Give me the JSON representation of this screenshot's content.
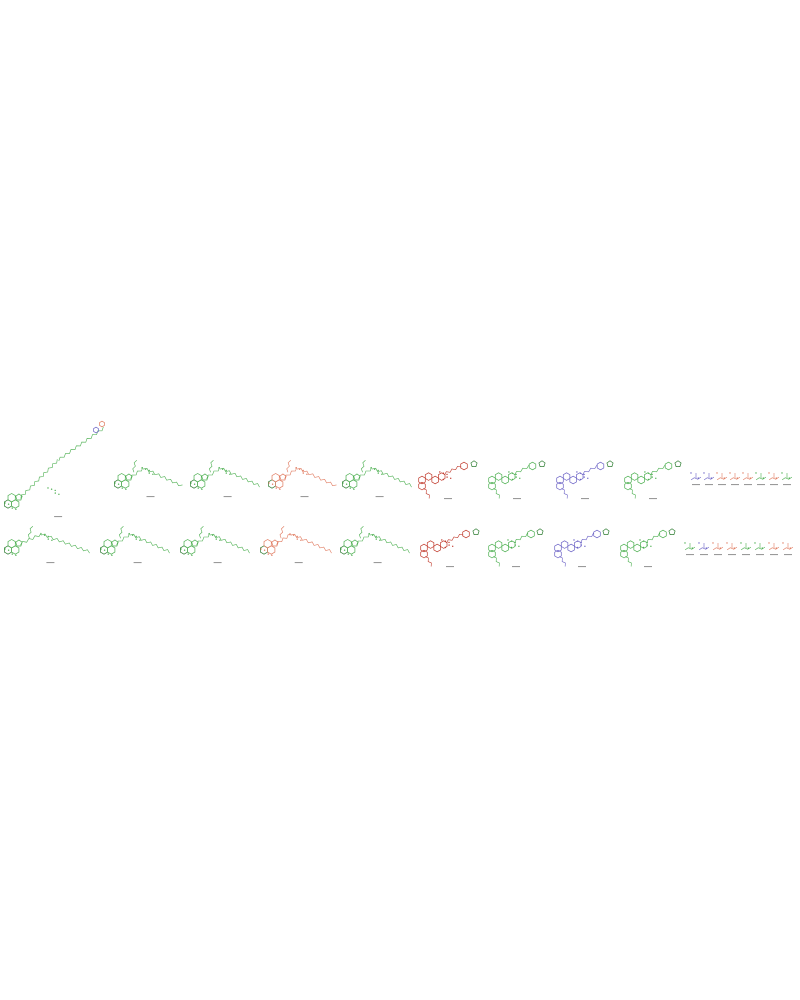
{
  "figure": {
    "type": "chemical-structure-panel",
    "rows": 2,
    "row_1": {
      "molecules": [
        {
          "color": "#4caf50",
          "label": "",
          "kind": "long-chain-tilted"
        },
        {
          "color": "#4caf50",
          "label": "",
          "kind": "chain"
        },
        {
          "color": "#4caf50",
          "label": "",
          "kind": "chain"
        },
        {
          "color": "#e07a5f",
          "label": "",
          "kind": "chain"
        },
        {
          "color": "#4caf50",
          "label": "",
          "kind": "chain-tail"
        },
        {
          "color": "#c0392b",
          "label": "",
          "kind": "fused-rings"
        },
        {
          "color": "#4caf50",
          "label": "",
          "kind": "fused-rings"
        },
        {
          "color": "#6c63c6",
          "label": "",
          "kind": "fused-rings"
        },
        {
          "color": "#4caf50",
          "label": "",
          "kind": "fused-rings"
        }
      ],
      "fragments": [
        {
          "color": "#6c63c6"
        },
        {
          "color": "#6c63c6"
        },
        {
          "color": "#e07a5f"
        },
        {
          "color": "#e07a5f"
        },
        {
          "color": "#e07a5f"
        },
        {
          "color": "#4caf50"
        },
        {
          "color": "#e07a5f"
        },
        {
          "color": "#4caf50"
        }
      ]
    },
    "row_2": {
      "molecules": [
        {
          "color": "#4caf50",
          "label": "",
          "kind": "chain"
        },
        {
          "color": "#4caf50",
          "label": "",
          "kind": "chain"
        },
        {
          "color": "#4caf50",
          "label": "",
          "kind": "chain"
        },
        {
          "color": "#e07a5f",
          "label": "",
          "kind": "chain"
        },
        {
          "color": "#4caf50",
          "label": "",
          "kind": "chain"
        },
        {
          "color": "#c0392b",
          "label": "",
          "kind": "fused-rings"
        },
        {
          "color": "#4caf50",
          "label": "",
          "kind": "fused-rings"
        },
        {
          "color": "#6c63c6",
          "label": "",
          "kind": "fused-rings"
        },
        {
          "color": "#4caf50",
          "label": "",
          "kind": "fused-rings"
        }
      ],
      "fragments": [
        {
          "color": "#4caf50"
        },
        {
          "color": "#6c63c6"
        },
        {
          "color": "#e07a5f"
        },
        {
          "color": "#e07a5f"
        },
        {
          "color": "#4caf50"
        },
        {
          "color": "#4caf50"
        },
        {
          "color": "#e07a5f"
        },
        {
          "color": "#e07a5f"
        }
      ]
    },
    "colors": {
      "background": "#ffffff",
      "bond_dark": "#2e7d32",
      "caption": "#9a9a9a"
    }
  }
}
